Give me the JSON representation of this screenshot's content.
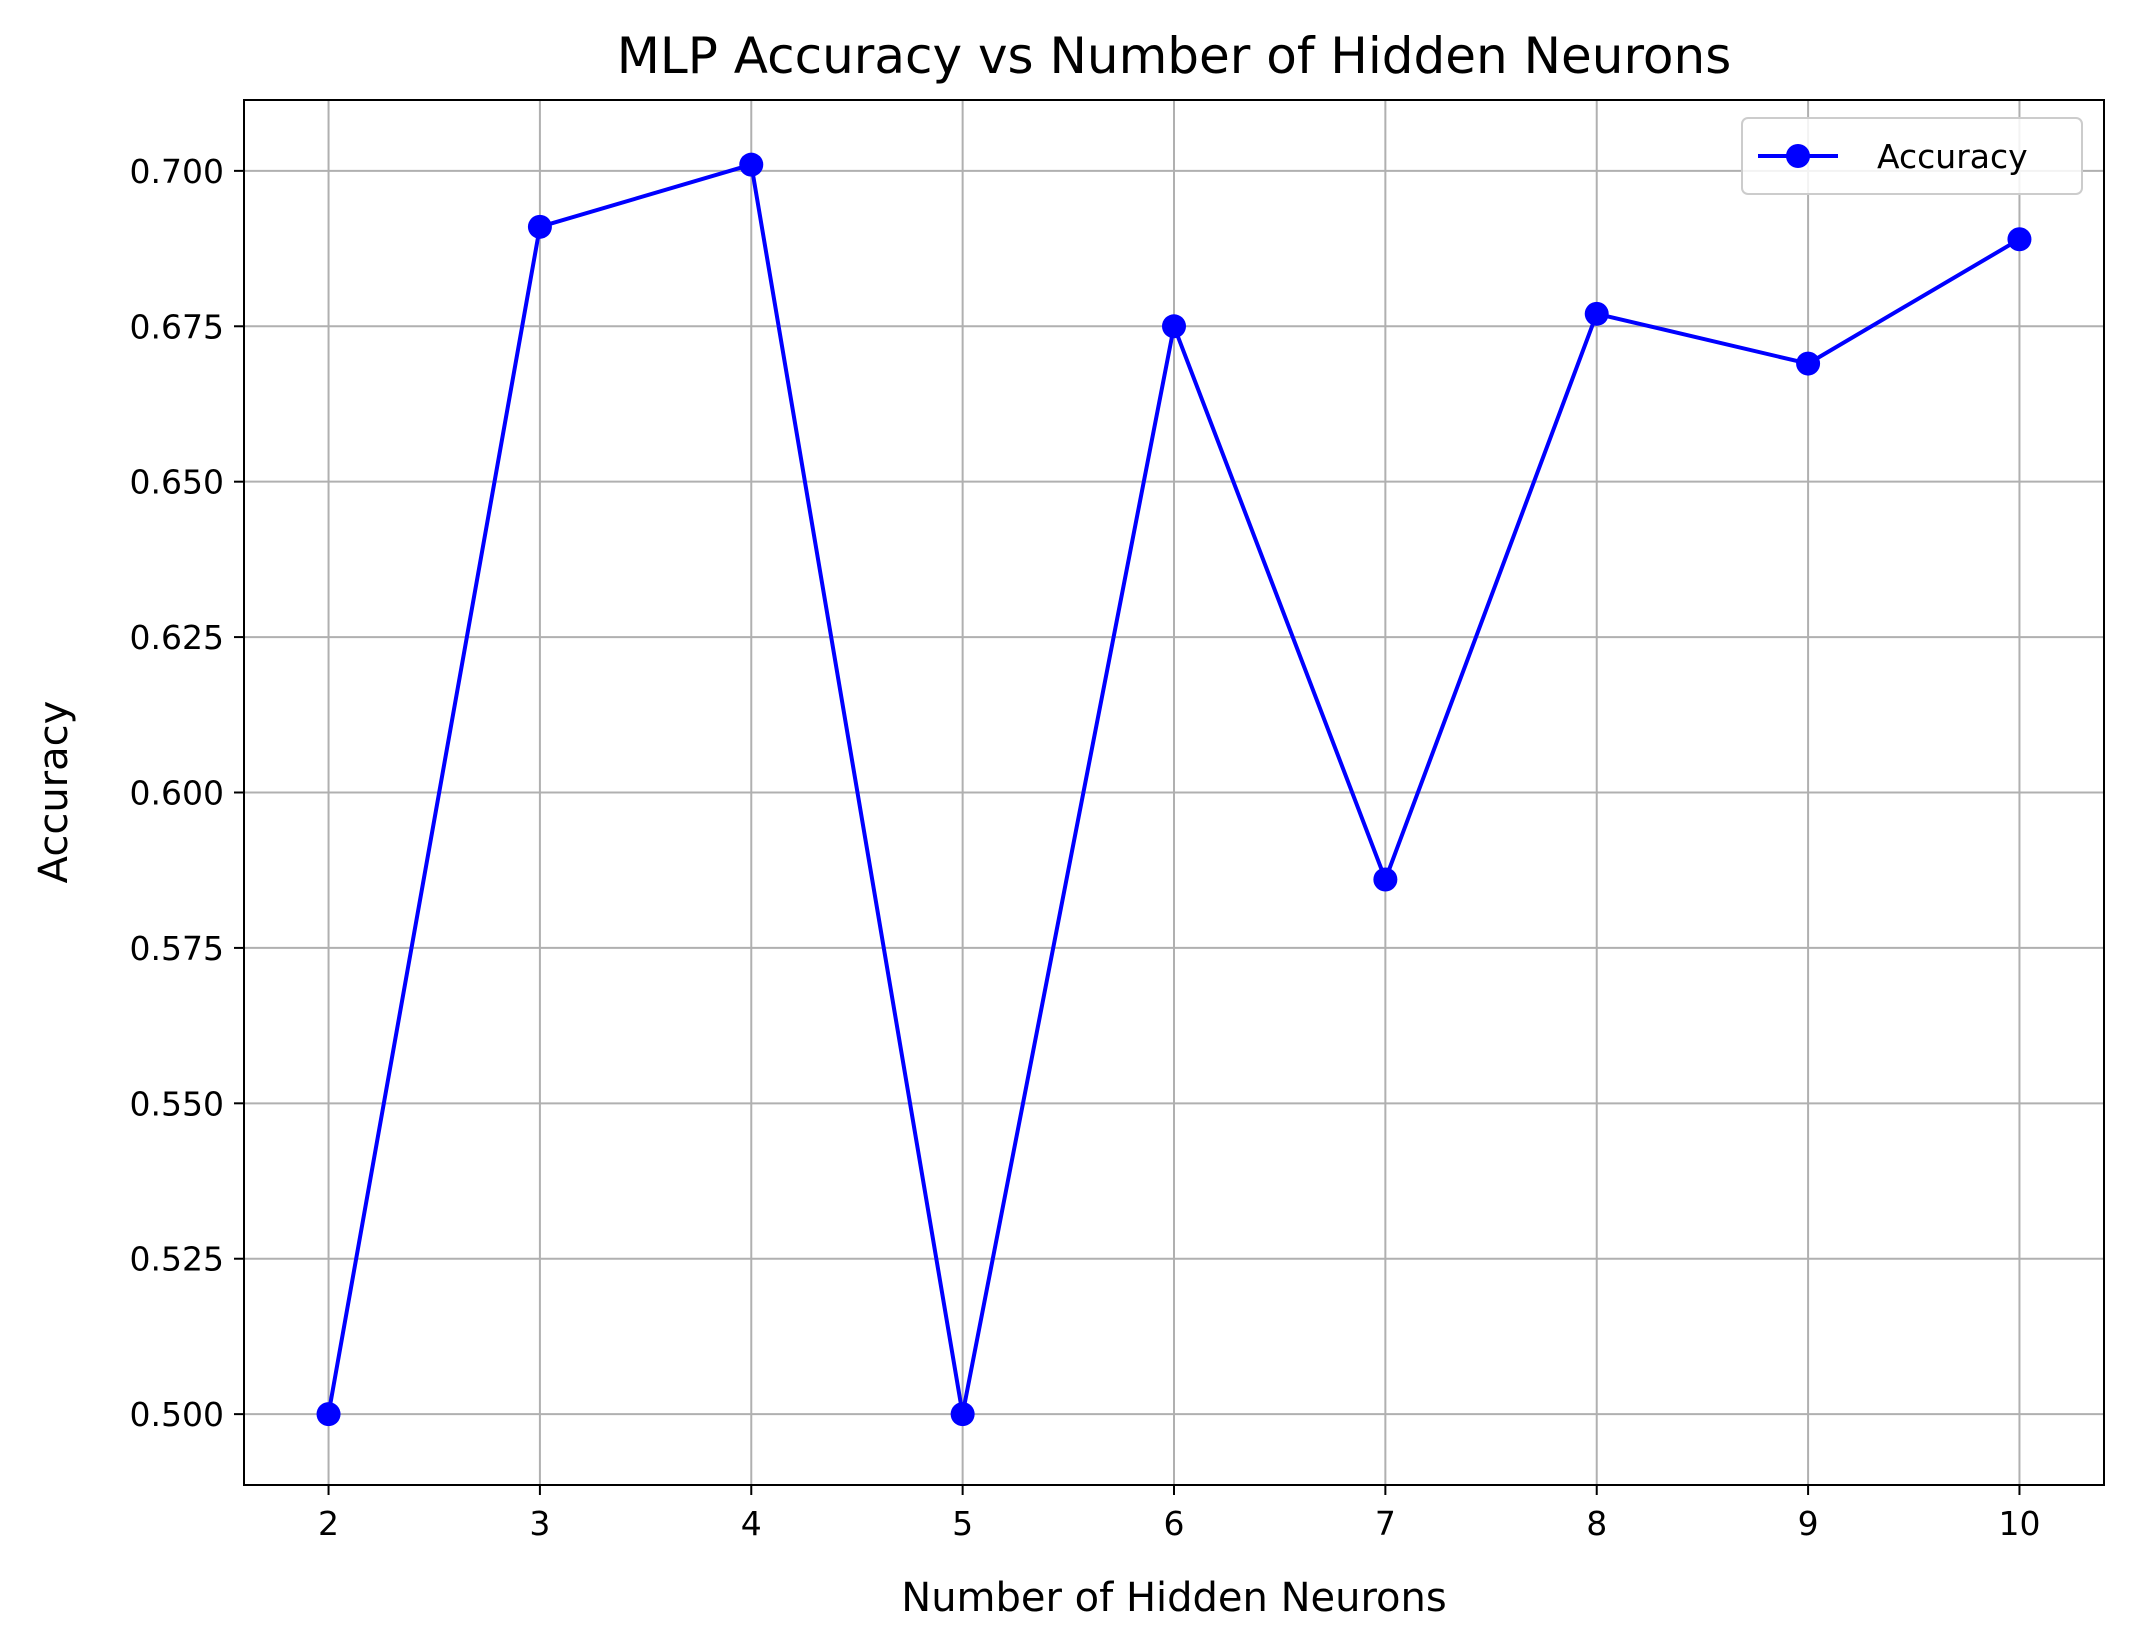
{
  "chart_data": {
    "type": "line",
    "title": "MLP Accuracy vs Number of Hidden Neurons",
    "xlabel": "Number of Hidden Neurons",
    "ylabel": "Accuracy",
    "x": [
      2,
      3,
      4,
      5,
      6,
      7,
      8,
      9,
      10
    ],
    "series": [
      {
        "name": "Accuracy",
        "color": "#0000ff",
        "marker": "circle",
        "values": [
          0.5,
          0.691,
          0.701,
          0.5,
          0.675,
          0.586,
          0.677,
          0.669,
          0.689
        ]
      }
    ],
    "xlim": [
      1.6,
      10.4
    ],
    "ylim": [
      0.4886,
      0.7114
    ],
    "xticks": [
      2,
      3,
      4,
      5,
      6,
      7,
      8,
      9,
      10
    ],
    "xtick_labels": [
      "2",
      "3",
      "4",
      "5",
      "6",
      "7",
      "8",
      "9",
      "10"
    ],
    "yticks": [
      0.5,
      0.525,
      0.55,
      0.575,
      0.6,
      0.625,
      0.65,
      0.675,
      0.7
    ],
    "ytick_labels": [
      "0.500",
      "0.525",
      "0.550",
      "0.575",
      "0.600",
      "0.625",
      "0.650",
      "0.675",
      "0.700"
    ],
    "grid": true,
    "grid_color": "#b0b0b0",
    "legend_position": "top-right"
  }
}
